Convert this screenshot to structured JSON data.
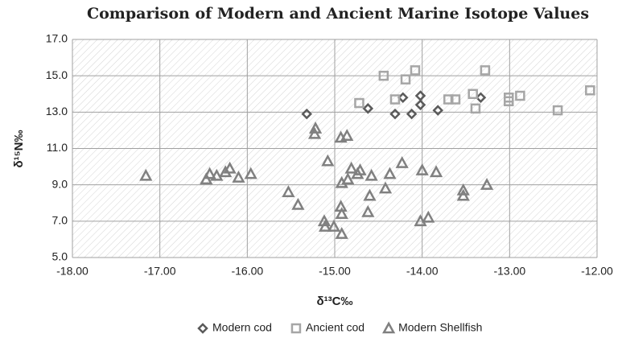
{
  "chart_data": {
    "type": "scatter",
    "title": "Comparison of Modern and Ancient Marine Isotope Values",
    "x_label": "δ¹³C‰",
    "y_label": "δ¹⁵N‰",
    "xlim": [
      -18,
      -12
    ],
    "xticks": [
      {
        "value": -18,
        "label": "-18.00"
      },
      {
        "value": -17,
        "label": "-17.00"
      },
      {
        "value": -16,
        "label": "-16.00"
      },
      {
        "value": -15,
        "label": "-15.00"
      },
      {
        "value": -14,
        "label": "-14.00"
      },
      {
        "value": -13,
        "label": "-13.00"
      },
      {
        "value": -12,
        "label": "-12.00"
      }
    ],
    "ylim": [
      5,
      17
    ],
    "yticks": [
      {
        "value": 5,
        "label": "5.0"
      },
      {
        "value": 7,
        "label": "7.0"
      },
      {
        "value": 9,
        "label": "9.0"
      },
      {
        "value": 11,
        "label": "11.0"
      },
      {
        "value": 13,
        "label": "13.0"
      },
      {
        "value": 15,
        "label": "15.0"
      },
      {
        "value": 17,
        "label": "17.0"
      }
    ],
    "grid": true,
    "legend": "bottom",
    "series": [
      {
        "name": "Modern cod",
        "color": "#5a5a5a",
        "marker": "diamond",
        "x": [
          -15.32,
          -14.62,
          -14.31,
          -14.22,
          -14.12,
          -14.02,
          -14.02,
          -13.82,
          -13.33
        ],
        "values": [
          12.9,
          13.2,
          12.9,
          13.8,
          12.9,
          13.9,
          13.4,
          13.1,
          13.8
        ]
      },
      {
        "name": "Ancient cod",
        "color": "#a6a6a6",
        "marker": "square",
        "x": [
          -14.44,
          -14.72,
          -14.31,
          -14.19,
          -14.08,
          -13.7,
          -13.62,
          -13.42,
          -13.39,
          -13.28,
          -13.01,
          -13.01,
          -12.88,
          -12.45,
          -12.08
        ],
        "values": [
          15.0,
          13.5,
          13.7,
          14.8,
          15.3,
          13.7,
          13.7,
          14.0,
          13.2,
          15.3,
          13.8,
          13.6,
          13.9,
          13.1,
          14.2
        ]
      },
      {
        "name": "Modern Shellfish",
        "color": "#808080",
        "marker": "triangle",
        "x": [
          -17.16,
          -16.47,
          -16.43,
          -16.35,
          -16.25,
          -16.2,
          -16.1,
          -15.96,
          -15.53,
          -15.42,
          -15.22,
          -15.23,
          -15.08,
          -15.12,
          -15.11,
          -15.01,
          -14.93,
          -14.92,
          -14.92,
          -14.93,
          -14.86,
          -14.92,
          -14.85,
          -14.81,
          -14.74,
          -14.71,
          -14.58,
          -14.6,
          -14.62,
          -14.42,
          -14.37,
          -14.23,
          -14.02,
          -14.0,
          -13.93,
          -13.84,
          -13.53,
          -13.53,
          -13.26
        ],
        "values": [
          9.5,
          9.3,
          9.6,
          9.5,
          9.7,
          9.9,
          9.4,
          9.6,
          8.6,
          7.9,
          12.1,
          11.8,
          10.3,
          7.0,
          6.7,
          6.7,
          7.8,
          7.4,
          6.3,
          11.6,
          11.7,
          9.1,
          9.3,
          9.9,
          9.6,
          9.8,
          9.5,
          8.4,
          7.5,
          8.8,
          9.6,
          10.2,
          7.0,
          9.8,
          7.2,
          9.7,
          8.7,
          8.4,
          9.0
        ]
      }
    ]
  }
}
